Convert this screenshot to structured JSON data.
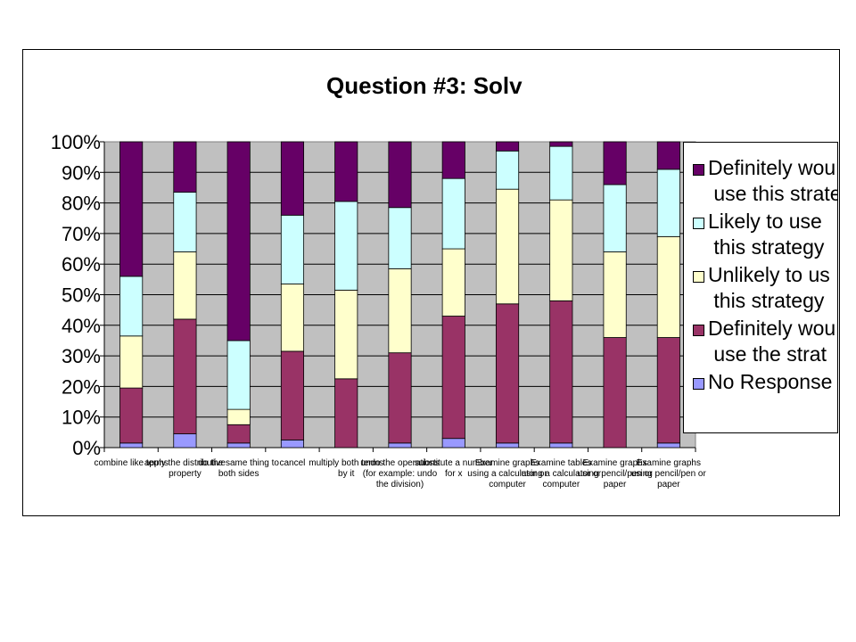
{
  "chart_data": {
    "type": "bar",
    "stacked": true,
    "title": "Question #3: Solv",
    "ylim": [
      0,
      100
    ],
    "yticks": [
      "0%",
      "10%",
      "20%",
      "30%",
      "40%",
      "50%",
      "60%",
      "70%",
      "80%",
      "90%",
      "100%"
    ],
    "categories": [
      [
        "combine like terms"
      ],
      [
        "apply the distributive",
        "property"
      ],
      [
        "do the same thing to",
        "both sides"
      ],
      [
        "cancel"
      ],
      [
        "multiply both terms",
        "by it"
      ],
      [
        "undo the operations",
        "(for example: undo",
        "the division)"
      ],
      [
        "substitute a number",
        "for x"
      ],
      [
        "Examine graphs",
        "using a calculator or",
        "computer"
      ],
      [
        "Examine tables",
        "using a calculator or",
        "computer"
      ],
      [
        "Examine graphs",
        "using pencil/pen or",
        "paper"
      ],
      [
        "Examine graphs",
        "using pencil/pen or",
        "paper"
      ]
    ],
    "legend_position": "right",
    "series": [
      {
        "name": "No Response",
        "color": "#9999FF",
        "values": [
          1.5,
          4.5,
          1.5,
          2.5,
          0,
          1.5,
          3,
          1.5,
          1.5,
          0,
          1.5
        ]
      },
      {
        "name": "Definitely wou\n use the strat",
        "color": "#993366",
        "values": [
          18,
          37.5,
          6,
          29,
          22.5,
          29.5,
          40,
          45.5,
          46.5,
          36,
          34.5
        ]
      },
      {
        "name": "Unlikely to us\n this strategy",
        "color": "#FFFFCC",
        "values": [
          17,
          22,
          5,
          22,
          29,
          27.5,
          22,
          37.5,
          33,
          28,
          33
        ]
      },
      {
        "name": "Likely to use\n this strategy",
        "color": "#CCFFFF",
        "values": [
          19.5,
          19.5,
          22.5,
          22.5,
          29,
          20,
          23,
          12.5,
          17.5,
          22,
          22
        ]
      },
      {
        "name": "Definitely wou\n use this strate",
        "color": "#660066",
        "values": [
          44,
          16.5,
          65,
          24,
          19.5,
          21.5,
          12,
          3,
          1.5,
          14,
          9
        ]
      }
    ],
    "plot_background": "#C0C0C0",
    "grid": true,
    "legend_order": [
      4,
      3,
      2,
      1,
      0
    ]
  }
}
